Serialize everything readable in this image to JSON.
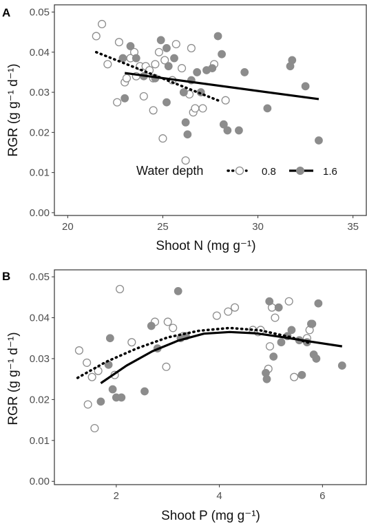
{
  "colors": {
    "open_marker_stroke": "#8c8c8c",
    "filled_marker": "#8c8c8c",
    "line": "#000000",
    "panel_border": "#333333",
    "tick_label": "#4d4d4d"
  },
  "legend": {
    "title": "Water depth",
    "entries": [
      {
        "label": "0.8",
        "marker": "open-circle",
        "line": "dotted"
      },
      {
        "label": "1.6",
        "marker": "filled-circle",
        "line": "solid"
      }
    ]
  },
  "chart_data": [
    {
      "panel": "A",
      "type": "scatter",
      "xlabel": "Shoot N (mg g⁻¹)",
      "ylabel": "RGR (g g⁻¹ d⁻¹)",
      "xlim": [
        19.3,
        35.7
      ],
      "ylim": [
        -0.0007,
        0.0518
      ],
      "xticks": [
        20,
        25,
        30,
        35
      ],
      "yticks": [
        0.0,
        0.01,
        0.02,
        0.03,
        0.04,
        0.05
      ],
      "xtick_labels": [
        "20",
        "25",
        "30",
        "35"
      ],
      "ytick_labels": [
        "0.00",
        "0.01",
        "0.02",
        "0.03",
        "0.04",
        "0.05"
      ],
      "grid": false,
      "legend_position": "bottom-right inside",
      "series": [
        {
          "name": "0.8",
          "marker": "open-circle",
          "points": [
            [
              21.5,
              0.044
            ],
            [
              21.8,
              0.047
            ],
            [
              22.1,
              0.037
            ],
            [
              22.6,
              0.0275
            ],
            [
              22.7,
              0.0425
            ],
            [
              23,
              0.0325
            ],
            [
              23.1,
              0.0335
            ],
            [
              23.3,
              0.0385
            ],
            [
              23.5,
              0.04
            ],
            [
              23.6,
              0.034
            ],
            [
              23.8,
              0.0365
            ],
            [
              24,
              0.029
            ],
            [
              24.1,
              0.0365
            ],
            [
              24.3,
              0.0355
            ],
            [
              24.5,
              0.0255
            ],
            [
              24.5,
              0.0335
            ],
            [
              24.6,
              0.037
            ],
            [
              24.8,
              0.04
            ],
            [
              25.0,
              0.0185
            ],
            [
              25.1,
              0.038
            ],
            [
              25.5,
              0.033
            ],
            [
              25.7,
              0.042
            ],
            [
              26.0,
              0.036
            ],
            [
              26.2,
              0.013
            ],
            [
              26.4,
              0.0295
            ],
            [
              26.5,
              0.041
            ],
            [
              26.6,
              0.025
            ],
            [
              26.7,
              0.026
            ],
            [
              27.1,
              0.026
            ],
            [
              27.7,
              0.037
            ],
            [
              28.3,
              0.028
            ]
          ],
          "fit": {
            "line": "dotted",
            "x": [
              21.5,
              28.0
            ],
            "y": [
              0.04,
              0.0278
            ]
          }
        },
        {
          "name": "1.6",
          "marker": "filled-circle",
          "points": [
            [
              22.9,
              0.0385
            ],
            [
              23.0,
              0.0285
            ],
            [
              23.3,
              0.0415
            ],
            [
              23.6,
              0.0385
            ],
            [
              24.0,
              0.034
            ],
            [
              24.6,
              0.0335
            ],
            [
              24.9,
              0.043
            ],
            [
              25.2,
              0.041
            ],
            [
              25.2,
              0.0275
            ],
            [
              25.3,
              0.0365
            ],
            [
              25.6,
              0.0385
            ],
            [
              26.1,
              0.03
            ],
            [
              26.2,
              0.0225
            ],
            [
              26.3,
              0.0195
            ],
            [
              26.5,
              0.033
            ],
            [
              26.8,
              0.035
            ],
            [
              27.0,
              0.03
            ],
            [
              27.3,
              0.0355
            ],
            [
              27.6,
              0.036
            ],
            [
              27.9,
              0.044
            ],
            [
              28.1,
              0.0395
            ],
            [
              28.2,
              0.022
            ],
            [
              28.4,
              0.0205
            ],
            [
              29.0,
              0.0205
            ],
            [
              29.3,
              0.035
            ],
            [
              30.5,
              0.026
            ],
            [
              31.7,
              0.0365
            ],
            [
              31.8,
              0.038
            ],
            [
              32.5,
              0.0315
            ],
            [
              33.2,
              0.018
            ]
          ],
          "fit": {
            "line": "solid",
            "x": [
              23.0,
              33.2
            ],
            "y": [
              0.0348,
              0.0283
            ]
          }
        }
      ]
    },
    {
      "panel": "B",
      "type": "scatter",
      "xlabel": "Shoot P (mg g⁻¹)",
      "ylabel": "RGR (g g⁻¹ d⁻¹)",
      "xlim": [
        0.8,
        6.85
      ],
      "ylim": [
        -0.0008,
        0.0517
      ],
      "xticks": [
        2,
        4,
        6
      ],
      "yticks": [
        0.0,
        0.01,
        0.02,
        0.03,
        0.04,
        0.05
      ],
      "xtick_labels": [
        "2",
        "4",
        "6"
      ],
      "ytick_labels": [
        "0.00",
        "0.01",
        "0.02",
        "0.03",
        "0.04",
        "0.05"
      ],
      "grid": false,
      "series": [
        {
          "name": "0.8",
          "marker": "open-circle",
          "points": [
            [
              1.28,
              0.032
            ],
            [
              1.43,
              0.029
            ],
            [
              1.45,
              0.0188
            ],
            [
              1.53,
              0.0255
            ],
            [
              1.58,
              0.013
            ],
            [
              1.65,
              0.027
            ],
            [
              1.97,
              0.026
            ],
            [
              2.07,
              0.047
            ],
            [
              2.3,
              0.034
            ],
            [
              2.75,
              0.039
            ],
            [
              2.97,
              0.028
            ],
            [
              3.0,
              0.039
            ],
            [
              3.1,
              0.0375
            ],
            [
              3.3,
              0.0355
            ],
            [
              3.95,
              0.0405
            ],
            [
              4.17,
              0.0415
            ],
            [
              4.3,
              0.0425
            ],
            [
              4.65,
              0.037
            ],
            [
              4.75,
              0.0365
            ],
            [
              4.8,
              0.037
            ],
            [
              4.95,
              0.0275
            ],
            [
              4.98,
              0.033
            ],
            [
              5.02,
              0.0425
            ],
            [
              5.08,
              0.04
            ],
            [
              5.35,
              0.044
            ],
            [
              5.45,
              0.0255
            ],
            [
              5.7,
              0.035
            ],
            [
              5.75,
              0.037
            ]
          ],
          "fit": {
            "line": "dotted",
            "x": [
              1.25,
              1.8,
              2.4,
              3.0,
              3.6,
              4.2,
              4.8,
              5.4,
              5.75
            ],
            "y": [
              0.0253,
              0.0292,
              0.0325,
              0.0352,
              0.0368,
              0.0375,
              0.0369,
              0.0352,
              0.0338
            ]
          }
        },
        {
          "name": "1.6",
          "marker": "filled-circle",
          "points": [
            [
              1.7,
              0.0195
            ],
            [
              1.85,
              0.0285
            ],
            [
              1.88,
              0.035
            ],
            [
              1.93,
              0.0225
            ],
            [
              2.0,
              0.0205
            ],
            [
              2.1,
              0.0205
            ],
            [
              2.55,
              0.022
            ],
            [
              2.68,
              0.038
            ],
            [
              2.8,
              0.0325
            ],
            [
              3.2,
              0.0465
            ],
            [
              3.25,
              0.035
            ],
            [
              3.35,
              0.0355
            ],
            [
              4.9,
              0.0265
            ],
            [
              4.92,
              0.025
            ],
            [
              4.97,
              0.044
            ],
            [
              5.05,
              0.0305
            ],
            [
              5.15,
              0.0425
            ],
            [
              5.2,
              0.034
            ],
            [
              5.32,
              0.0355
            ],
            [
              5.4,
              0.037
            ],
            [
              5.55,
              0.0345
            ],
            [
              5.6,
              0.026
            ],
            [
              5.7,
              0.034
            ],
            [
              5.78,
              0.0385
            ],
            [
              5.8,
              0.0385
            ],
            [
              5.83,
              0.031
            ],
            [
              5.88,
              0.03
            ],
            [
              5.92,
              0.0435
            ],
            [
              6.38,
              0.0283
            ]
          ],
          "fit": {
            "line": "solid",
            "x": [
              1.7,
              2.2,
              2.7,
              3.2,
              3.7,
              4.2,
              4.7,
              5.2,
              5.7,
              6.38
            ],
            "y": [
              0.024,
              0.0283,
              0.0318,
              0.0344,
              0.0361,
              0.0365,
              0.0362,
              0.0353,
              0.0343,
              0.033
            ]
          }
        }
      ]
    }
  ]
}
